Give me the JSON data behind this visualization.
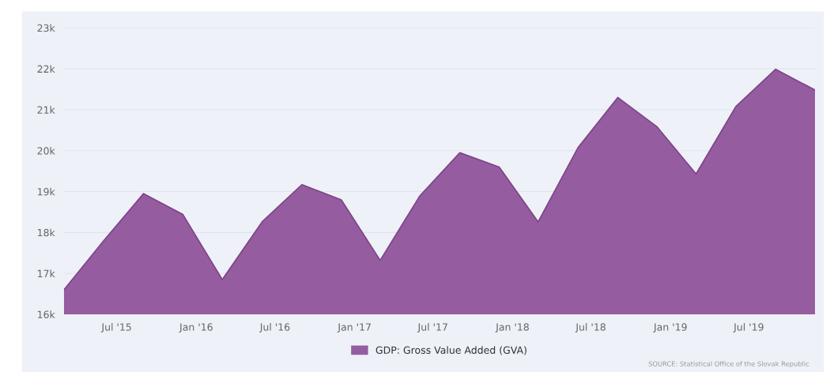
{
  "chart_data": {
    "type": "area",
    "x": [
      "2015-03",
      "2015-06",
      "2015-09",
      "2015-12",
      "2016-03",
      "2016-06",
      "2016-09",
      "2016-12",
      "2017-03",
      "2017-06",
      "2017-09",
      "2017-12",
      "2018-03",
      "2018-06",
      "2018-09",
      "2018-12",
      "2019-03",
      "2019-06",
      "2019-09",
      "2019-12"
    ],
    "series": [
      {
        "name": "GDP: Gross Value Added (GVA)",
        "color": "#955ca0",
        "values": [
          16.6,
          17.8,
          18.95,
          18.44,
          16.85,
          18.26,
          19.17,
          18.8,
          17.32,
          18.9,
          19.95,
          19.6,
          18.26,
          20.07,
          21.3,
          20.58,
          19.43,
          21.08,
          21.99,
          21.48
        ]
      }
    ],
    "ylim": [
      16,
      23
    ],
    "yticks": [
      {
        "value": 16,
        "label": "16k"
      },
      {
        "value": 17,
        "label": "17k"
      },
      {
        "value": 18,
        "label": "18k"
      },
      {
        "value": 19,
        "label": "19k"
      },
      {
        "value": 20,
        "label": "20k"
      },
      {
        "value": 21,
        "label": "21k"
      },
      {
        "value": 22,
        "label": "22k"
      },
      {
        "value": 23,
        "label": "23k"
      }
    ],
    "xlim": [
      "2015-03",
      "2019-12"
    ],
    "xticks": [
      {
        "value": "2015-07",
        "label": "Jul '15"
      },
      {
        "value": "2016-01",
        "label": "Jan '16"
      },
      {
        "value": "2016-07",
        "label": "Jul '16"
      },
      {
        "value": "2017-01",
        "label": "Jan '17"
      },
      {
        "value": "2017-07",
        "label": "Jul '17"
      },
      {
        "value": "2018-01",
        "label": "Jan '18"
      },
      {
        "value": "2018-07",
        "label": "Jul '18"
      },
      {
        "value": "2019-01",
        "label": "Jan '19"
      },
      {
        "value": "2019-07",
        "label": "Jul '19"
      }
    ],
    "grid": "y",
    "legend": "bottom",
    "annotations": [
      "SOURCE: Statistical Office of the Slovak Republic"
    ]
  }
}
